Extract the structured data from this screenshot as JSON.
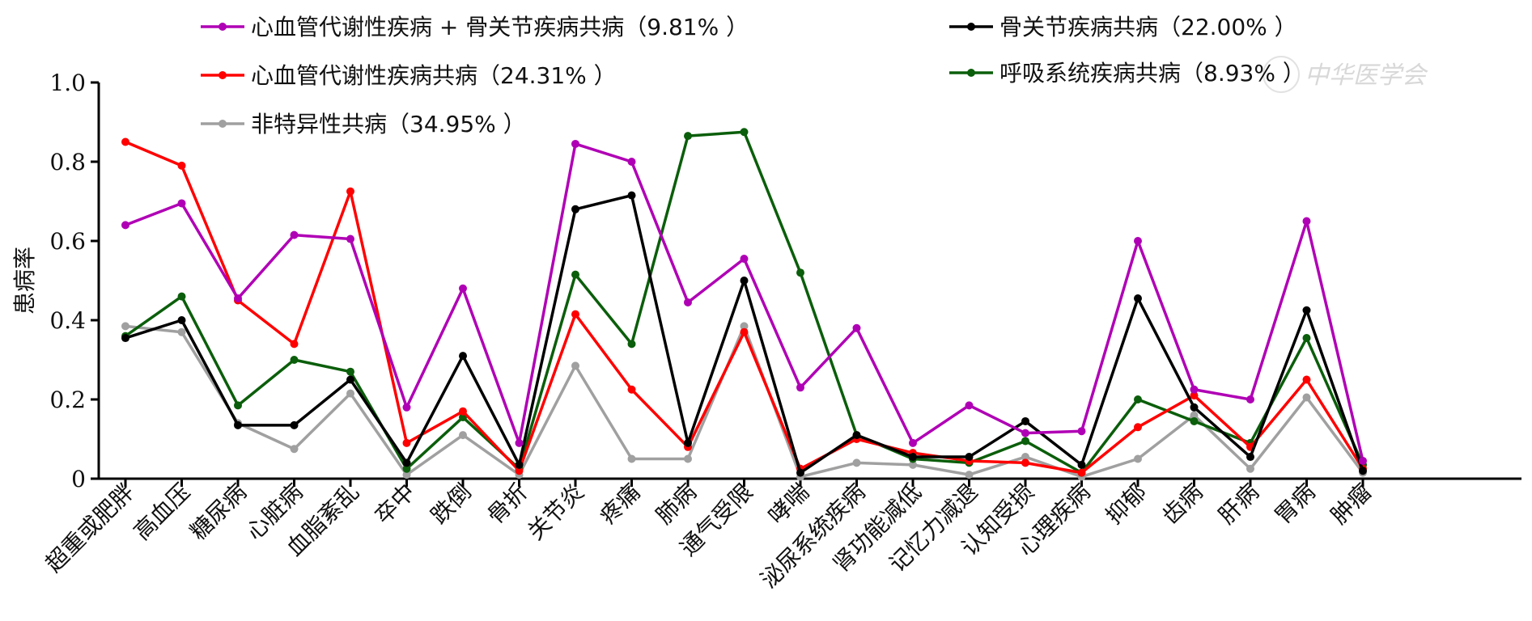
{
  "watermark": "中华医学会",
  "chart_data": {
    "type": "line",
    "ylabel": "患病率",
    "xlabel": "",
    "ylim": [
      0,
      1.0
    ],
    "yticks": [
      "0",
      "0.2",
      "0.4",
      "0.6",
      "0.8",
      "1.0"
    ],
    "legend_placement": "top",
    "categories": [
      "超重或肥胖",
      "高血压",
      "糖尿病",
      "心脏病",
      "血脂紊乱",
      "卒中",
      "跌倒",
      "骨折",
      "关节炎",
      "疼痛",
      "肺病",
      "通气受限",
      "哮喘",
      "泌尿系统疾病",
      "肾功能减低",
      "记忆力减退",
      "认知受损",
      "心理疾病",
      "抑郁",
      "齿病",
      "肝病",
      "胃病",
      "肿瘤"
    ],
    "series": [
      {
        "name": "心血管代谢性疾病 + 骨关节疾病共病（9.81% ）",
        "color": "#b000b5",
        "values": [
          0.64,
          0.695,
          0.455,
          0.615,
          0.605,
          0.18,
          0.48,
          0.09,
          0.845,
          0.8,
          0.445,
          0.555,
          0.23,
          0.38,
          0.09,
          0.185,
          0.115,
          0.12,
          0.6,
          0.225,
          0.2,
          0.65,
          0.045
        ]
      },
      {
        "name": "骨关节疾病共病（22.00% ）",
        "color": "#000000",
        "values": [
          0.355,
          0.4,
          0.135,
          0.135,
          0.25,
          0.04,
          0.31,
          0.035,
          0.68,
          0.715,
          0.09,
          0.5,
          0.015,
          0.11,
          0.055,
          0.055,
          0.145,
          0.035,
          0.455,
          0.18,
          0.055,
          0.425,
          0.02
        ]
      },
      {
        "name": "心血管代谢性疾病共病（24.31% ）",
        "color": "#ff0000",
        "values": [
          0.85,
          0.79,
          0.45,
          0.34,
          0.725,
          0.09,
          0.17,
          0.02,
          0.415,
          0.225,
          0.08,
          0.37,
          0.025,
          0.1,
          0.065,
          0.045,
          0.04,
          0.015,
          0.13,
          0.21,
          0.08,
          0.25,
          0.025
        ]
      },
      {
        "name": "呼吸系统疾病共病（8.93% ）",
        "color": "#0b5e0b",
        "values": [
          0.36,
          0.46,
          0.185,
          0.3,
          0.27,
          0.025,
          0.155,
          0.025,
          0.515,
          0.34,
          0.865,
          0.875,
          0.52,
          0.11,
          0.05,
          0.04,
          0.095,
          0.015,
          0.2,
          0.145,
          0.09,
          0.355,
          0.035
        ]
      },
      {
        "name": "非特异性共病（34.95% ）",
        "color": "#a0a0a0",
        "values": [
          0.385,
          0.37,
          0.14,
          0.075,
          0.215,
          0.01,
          0.11,
          0.01,
          0.285,
          0.05,
          0.05,
          0.385,
          0.005,
          0.04,
          0.035,
          0.01,
          0.055,
          0.005,
          0.05,
          0.16,
          0.025,
          0.205,
          0.015
        ]
      }
    ]
  }
}
